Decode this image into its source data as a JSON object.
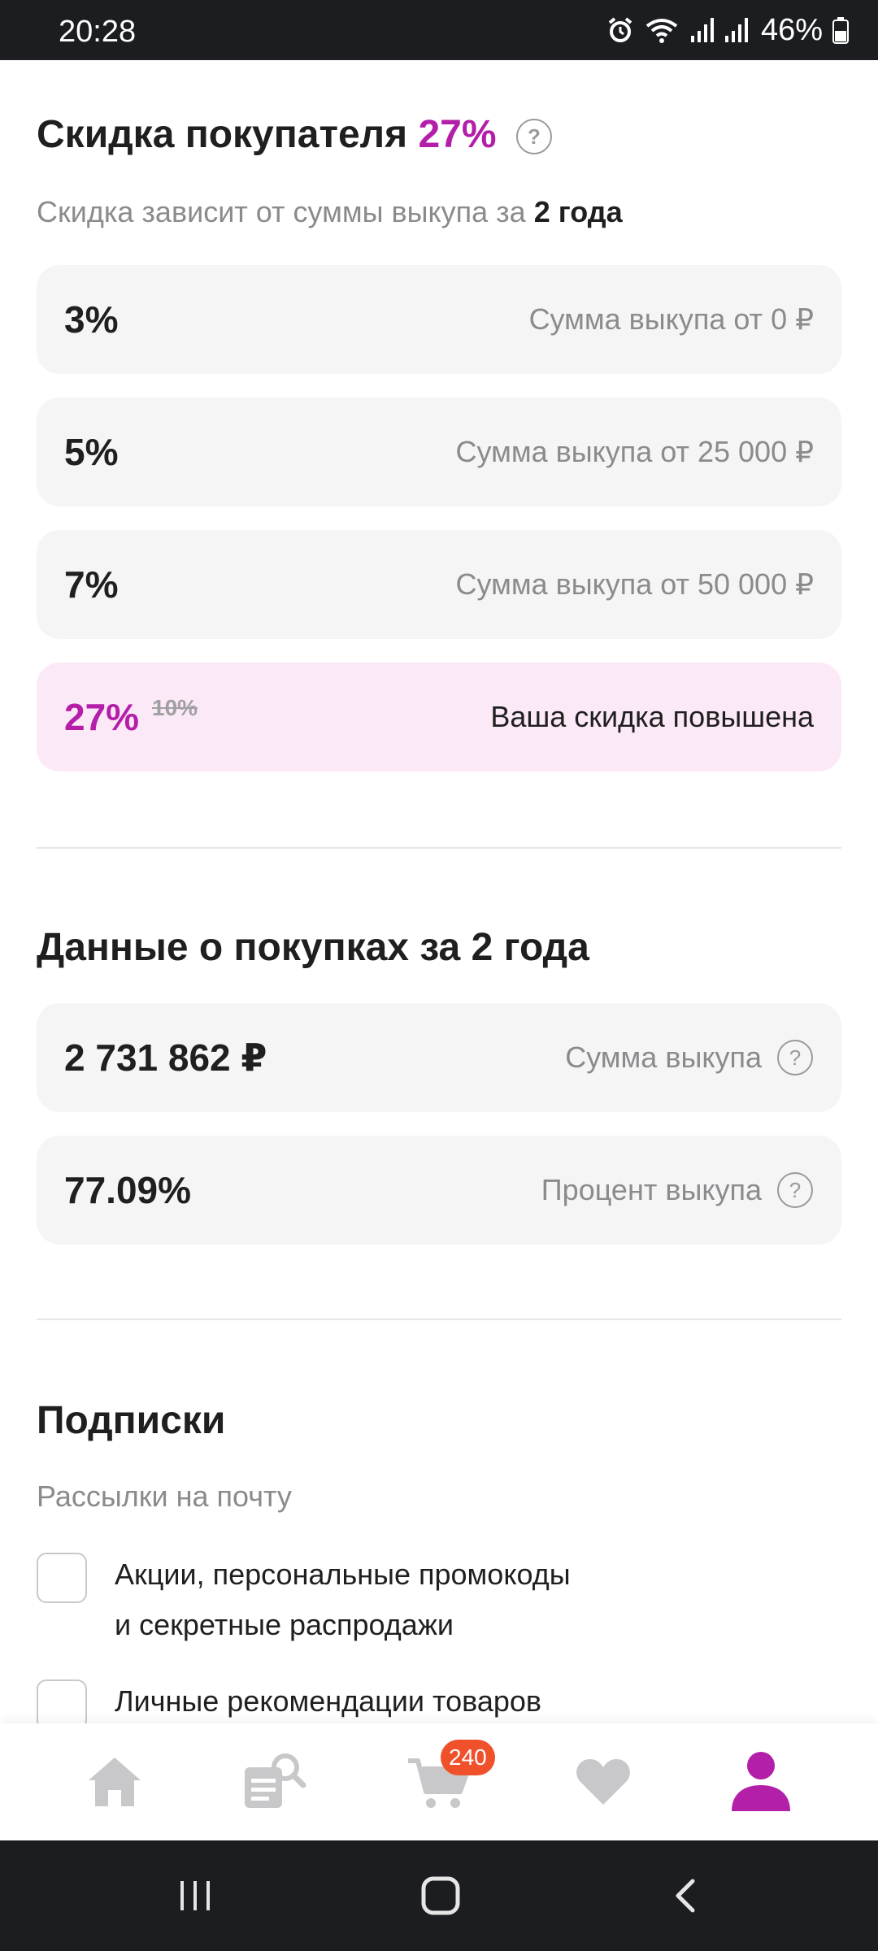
{
  "status_bar": {
    "time": "20:28",
    "battery": "46%"
  },
  "discount": {
    "title": "Скидка покупателя",
    "value": "27%",
    "subtitle_prefix": "Скидка зависит от суммы выкупа за",
    "subtitle_bold": "2 года",
    "tiers": [
      {
        "value": "3%",
        "label": "Сумма выкупа от 0 ₽"
      },
      {
        "value": "5%",
        "label": "Сумма выкупа от 25 000 ₽"
      },
      {
        "value": "7%",
        "label": "Сумма выкупа от 50 000 ₽"
      }
    ],
    "current": {
      "value": "27%",
      "old_value": "10%",
      "label": "Ваша скидка повышена"
    }
  },
  "purchases": {
    "title": "Данные о покупках за 2 года",
    "sum": {
      "value": "2 731 862 ₽",
      "label": "Сумма выкупа"
    },
    "percent": {
      "value": "77.09%",
      "label": "Процент выкупа"
    }
  },
  "subscriptions": {
    "title": "Подписки",
    "subtitle": "Рассылки на почту",
    "items": [
      {
        "line1": "Акции, персональные промокоды",
        "line2": "и секретные распродажи",
        "checked": false
      },
      {
        "line1": "Личные рекомендации товаров",
        "line2": "",
        "checked": false
      }
    ]
  },
  "bottom_nav": {
    "cart_badge": "240",
    "active": "profile",
    "colors": {
      "active": "#b31fa8",
      "inactive": "#c8c8ca",
      "badge": "#f0512b"
    }
  }
}
